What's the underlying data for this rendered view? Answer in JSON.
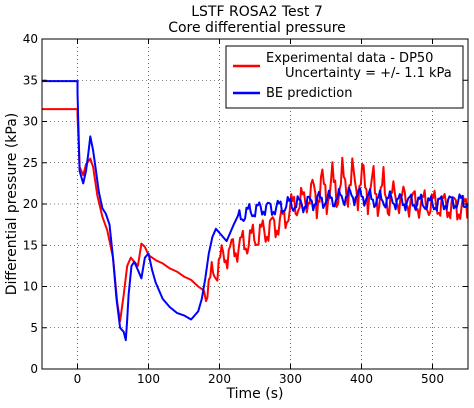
{
  "chart_data": {
    "type": "line",
    "title": "LSTF ROSA2 Test 7",
    "subtitle": "Core differential pressure",
    "xlabel": "Time (s)",
    "ylabel": "Differential pressure (kPa)",
    "xlim": [
      -50,
      550
    ],
    "ylim": [
      0,
      40
    ],
    "xticks": [
      0,
      100,
      200,
      300,
      400,
      500
    ],
    "yticks": [
      0,
      5,
      10,
      15,
      20,
      25,
      30,
      35,
      40
    ],
    "grid": true,
    "legend_position": "top-right",
    "series": [
      {
        "name": "Experimental data - DP50",
        "name_line2": "Uncertainty = +/- 1.1 kPa",
        "color": "#ff0000",
        "noisy_after_x": 180,
        "x": [
          -50,
          0,
          0,
          3,
          8,
          12,
          18,
          22,
          28,
          35,
          42,
          50,
          56,
          60,
          65,
          70,
          75,
          80,
          85,
          90,
          95,
          100,
          110,
          120,
          130,
          140,
          150,
          160,
          170,
          178,
          182,
          186,
          190,
          195,
          200,
          210,
          220,
          230,
          240,
          250,
          260,
          270,
          280,
          290,
          300,
          320,
          340,
          360,
          380,
          400,
          420,
          440,
          460,
          480,
          500,
          520,
          540,
          550
        ],
        "y": [
          31.5,
          31.5,
          30.8,
          24.5,
          23.5,
          24.8,
          25.5,
          24.5,
          21.0,
          18.5,
          16.8,
          13.5,
          8.0,
          5.8,
          9.0,
          12.5,
          13.5,
          13.0,
          12.5,
          15.2,
          14.8,
          13.8,
          13.2,
          12.8,
          12.2,
          11.8,
          11.2,
          10.8,
          10.0,
          9.5,
          9.8,
          10.5,
          11.2,
          12.0,
          13.0,
          14.0,
          14.5,
          15.0,
          15.5,
          16.0,
          16.5,
          17.0,
          17.5,
          18.0,
          19.5,
          20.5,
          21.5,
          22.0,
          22.5,
          22.5,
          21.5,
          21.0,
          20.5,
          20.0,
          20.0,
          19.8,
          19.5,
          19.5
        ]
      },
      {
        "name": "BE prediction",
        "color": "#0000ff",
        "noisy_after_x": 225,
        "x": [
          -50,
          0,
          0,
          3,
          8,
          12,
          15,
          18,
          22,
          26,
          30,
          35,
          40,
          45,
          50,
          55,
          60,
          65,
          68,
          70,
          72,
          76,
          80,
          85,
          90,
          95,
          100,
          105,
          110,
          120,
          130,
          140,
          150,
          160,
          165,
          170,
          175,
          180,
          185,
          190,
          195,
          200,
          210,
          220,
          230,
          240,
          260,
          280,
          300,
          320,
          340,
          360,
          380,
          400,
          420,
          440,
          460,
          480,
          500,
          520,
          540,
          550
        ],
        "y": [
          34.9,
          34.9,
          33.5,
          24.0,
          22.5,
          24.0,
          26.0,
          28.2,
          26.5,
          24.0,
          21.5,
          19.5,
          18.8,
          17.5,
          13.5,
          8.5,
          5.0,
          4.5,
          3.5,
          6.0,
          9.0,
          12.5,
          13.0,
          12.0,
          11.0,
          13.5,
          14.0,
          12.0,
          10.5,
          8.5,
          7.5,
          6.8,
          6.5,
          6.0,
          6.5,
          7.0,
          8.5,
          11.0,
          14.0,
          16.0,
          17.0,
          16.5,
          15.5,
          17.5,
          18.5,
          19.0,
          19.5,
          19.5,
          20.0,
          20.0,
          20.5,
          20.5,
          21.0,
          21.0,
          20.5,
          20.5,
          20.3,
          20.2,
          20.0,
          20.2,
          20.3,
          20.3
        ]
      }
    ]
  }
}
